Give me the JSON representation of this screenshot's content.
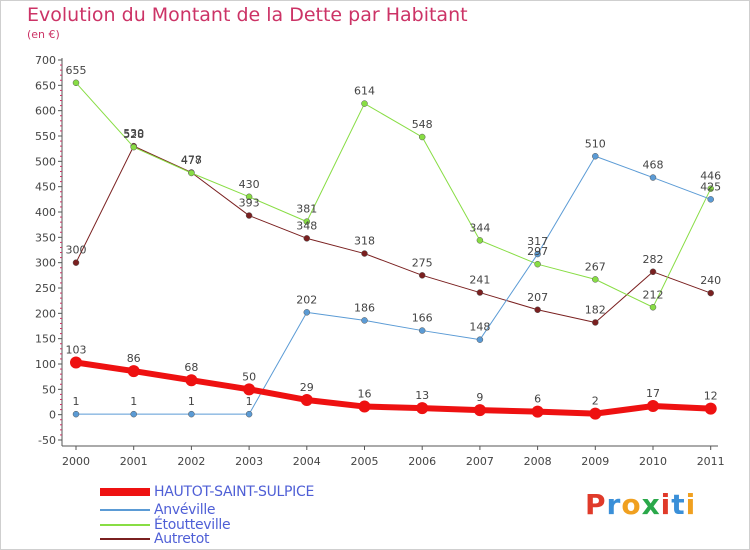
{
  "title": "Evolution du Montant de la Dette par Habitant",
  "subtitle": "(en €)",
  "colors": {
    "title": "#cc3366",
    "legend_text": "#4f5fd6",
    "axis": "#555555"
  },
  "logo": {
    "text": "Proxiti",
    "colors": [
      "#e03a2a",
      "#3a8fd8",
      "#f0a020",
      "#2aa84a",
      "#e03a2a",
      "#3a8fd8",
      "#f0a020"
    ]
  },
  "chart_data": {
    "type": "line",
    "title": "Evolution du Montant de la Dette par Habitant",
    "ylabel": "(en €)",
    "categories": [
      "2000",
      "2001",
      "2002",
      "2003",
      "2004",
      "2005",
      "2006",
      "2007",
      "2008",
      "2009",
      "2010",
      "2011"
    ],
    "ylim": [
      -50,
      700
    ],
    "yticks": [
      -50,
      0,
      50,
      100,
      150,
      200,
      250,
      300,
      350,
      400,
      450,
      500,
      550,
      600,
      650,
      700
    ],
    "grid": false,
    "legend_position": "bottom-left",
    "series": [
      {
        "name": "HAUTOT-SAINT-SULPICE",
        "color": "#ee1111",
        "width": 6,
        "values": [
          103,
          86,
          68,
          50,
          29,
          16,
          13,
          9,
          6,
          2,
          17,
          12
        ]
      },
      {
        "name": "Anvéville",
        "color": "#5b9bd5",
        "width": 1,
        "values": [
          1,
          1,
          1,
          1,
          202,
          186,
          166,
          148,
          317,
          510,
          468,
          425
        ]
      },
      {
        "name": "Étoutteville",
        "color": "#88dd44",
        "width": 1,
        "values": [
          655,
          528,
          477,
          430,
          381,
          614,
          548,
          344,
          297,
          267,
          212,
          446
        ]
      },
      {
        "name": "Autretot",
        "color": "#7a2020",
        "width": 1,
        "values": [
          300,
          530,
          478,
          393,
          348,
          318,
          275,
          241,
          207,
          182,
          282,
          240
        ]
      }
    ]
  }
}
